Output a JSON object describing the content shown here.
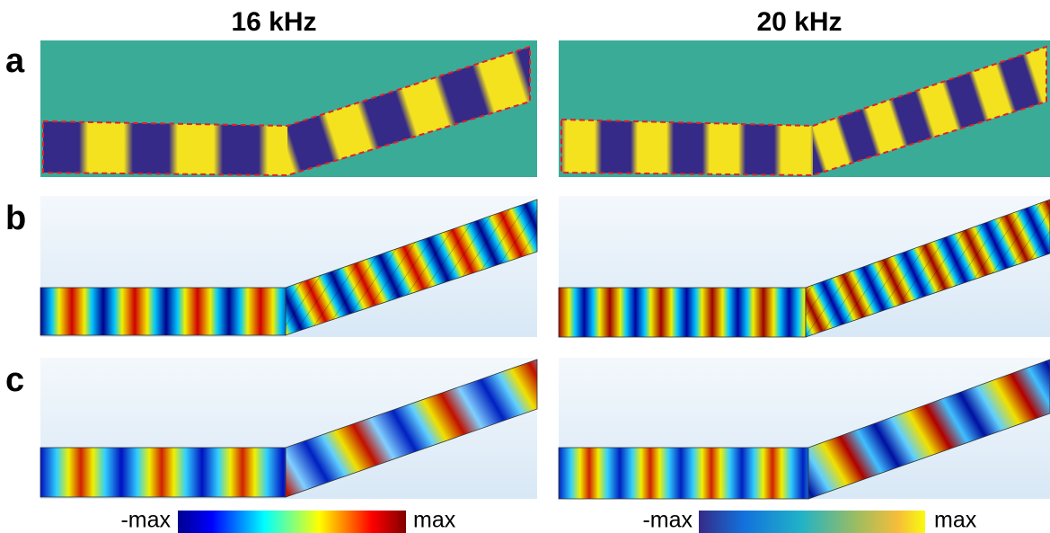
{
  "columns": [
    {
      "title": "16 kHz"
    },
    {
      "title": "20 kHz"
    }
  ],
  "rows": [
    {
      "label": "a"
    },
    {
      "label": "b"
    },
    {
      "label": "c"
    }
  ],
  "colorbars": [
    {
      "min_label": "-max",
      "max_label": "max"
    },
    {
      "min_label": "-max",
      "max_label": "max"
    }
  ]
}
